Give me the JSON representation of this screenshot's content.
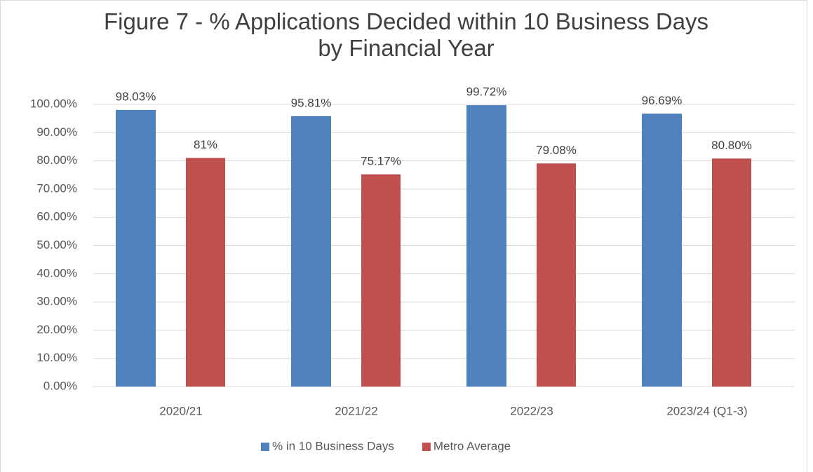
{
  "chart_data": {
    "type": "bar",
    "title": "Figure 7 - % Applications Decided within 10 Business Days by Financial Year",
    "categories": [
      "2020/21",
      "2021/22",
      "2022/23",
      "2023/24 (Q1-3)"
    ],
    "series": [
      {
        "name": "% in 10 Business Days",
        "color": "#4f81bd",
        "values": [
          98.03,
          95.81,
          99.72,
          96.69
        ],
        "value_labels": [
          "98.03%",
          "95.81%",
          "99.72%",
          "96.69%"
        ]
      },
      {
        "name": "Metro Average",
        "color": "#c0504d",
        "values": [
          81,
          75.17,
          79.08,
          80.8
        ],
        "value_labels": [
          "81%",
          "75.17%",
          "79.08%",
          "80.80%"
        ]
      }
    ],
    "ylim": [
      0,
      100
    ],
    "yticks": [
      {
        "value": 0,
        "label": "0.00%"
      },
      {
        "value": 10,
        "label": "10.00%"
      },
      {
        "value": 20,
        "label": "20.00%"
      },
      {
        "value": 30,
        "label": "30.00%"
      },
      {
        "value": 40,
        "label": "40.00%"
      },
      {
        "value": 50,
        "label": "50.00%"
      },
      {
        "value": 60,
        "label": "60.00%"
      },
      {
        "value": 70,
        "label": "70.00%"
      },
      {
        "value": 80,
        "label": "80.00%"
      },
      {
        "value": 90,
        "label": "90.00%"
      },
      {
        "value": 100,
        "label": "100.00%"
      }
    ],
    "grid": true,
    "legend": "bottom"
  }
}
